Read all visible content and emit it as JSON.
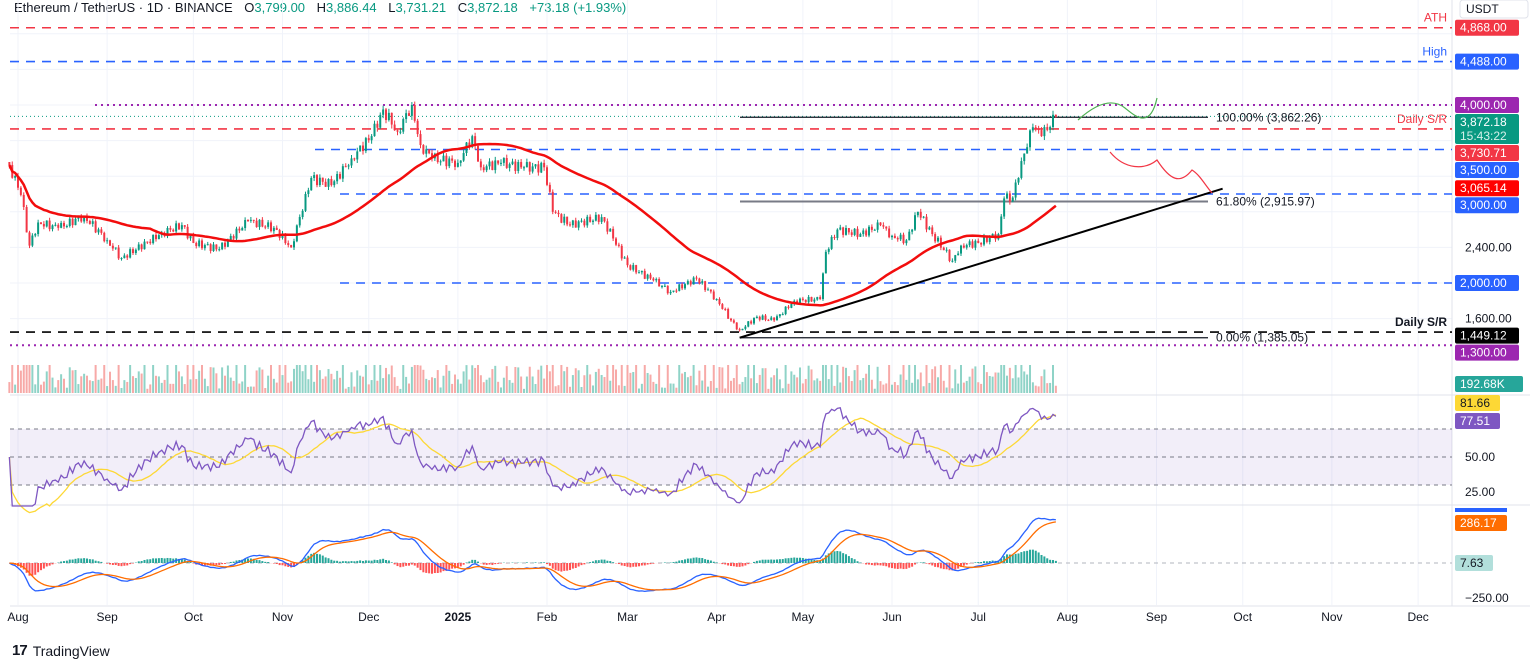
{
  "header": {
    "symbol": "Ethereum / TetherUS · 1D · BINANCE",
    "open_label": "O",
    "open": "3,799.00",
    "high_label": "H",
    "high": "3,886.44",
    "low_label": "L",
    "low": "3,731.21",
    "close_label": "C",
    "close": "3,872.18",
    "change": "+73.18 (+1.93%)"
  },
  "currency": "USDT",
  "footer": {
    "brand": "TradingView"
  },
  "colors": {
    "up": "#089981",
    "down": "#f23645",
    "ma": "#f20d0d",
    "rsi": "#7e57c2",
    "rsi_ma": "#fdd835",
    "macd": "#2962ff",
    "signal": "#ff6d00"
  },
  "chart_data": {
    "type": "candlestick",
    "title": "Ethereum / TetherUS · 1D · BINANCE",
    "x_ticks": [
      "Aug",
      "Sep",
      "Oct",
      "Nov",
      "Dec",
      "2025",
      "Feb",
      "Mar",
      "Apr",
      "May",
      "Jun",
      "Jul",
      "Aug",
      "Sep",
      "Oct",
      "Nov",
      "Dec"
    ],
    "x_tick_dates": [
      "2024-08-01",
      "2024-09-01",
      "2024-10-01",
      "2024-11-01",
      "2024-12-01",
      "2025-01-01",
      "2025-02-01",
      "2025-03-01",
      "2025-04-01",
      "2025-05-01",
      "2025-06-01",
      "2025-07-01",
      "2025-08-01",
      "2025-09-01",
      "2025-10-01",
      "2025-11-01",
      "2025-12-01"
    ],
    "y_ticks": [
      "2,400.00",
      "1,600.00"
    ],
    "ylim": [
      1250,
      5100
    ],
    "scale": "linear",
    "grid": true,
    "approx_close_path": [
      [
        "2024-07-29",
        3326
      ],
      [
        "2024-08-02",
        2990
      ],
      [
        "2024-08-05",
        2420
      ],
      [
        "2024-08-08",
        2680
      ],
      [
        "2024-08-15",
        2620
      ],
      [
        "2024-08-24",
        2750
      ],
      [
        "2024-09-01",
        2480
      ],
      [
        "2024-09-06",
        2280
      ],
      [
        "2024-09-20",
        2560
      ],
      [
        "2024-09-27",
        2650
      ],
      [
        "2024-10-01",
        2450
      ],
      [
        "2024-10-10",
        2380
      ],
      [
        "2024-10-20",
        2700
      ],
      [
        "2024-10-29",
        2620
      ],
      [
        "2024-11-04",
        2400
      ],
      [
        "2024-11-11",
        3180
      ],
      [
        "2024-11-18",
        3100
      ],
      [
        "2024-11-25",
        3400
      ],
      [
        "2024-12-02",
        3650
      ],
      [
        "2024-12-06",
        3950
      ],
      [
        "2024-12-11",
        3700
      ],
      [
        "2024-12-16",
        4000
      ],
      [
        "2024-12-19",
        3550
      ],
      [
        "2024-12-23",
        3400
      ],
      [
        "2025-01-01",
        3350
      ],
      [
        "2025-01-06",
        3650
      ],
      [
        "2025-01-09",
        3300
      ],
      [
        "2025-01-16",
        3350
      ],
      [
        "2025-01-24",
        3300
      ],
      [
        "2025-01-31",
        3300
      ],
      [
        "2025-02-03",
        2800
      ],
      [
        "2025-02-09",
        2650
      ],
      [
        "2025-02-20",
        2740
      ],
      [
        "2025-02-24",
        2500
      ],
      [
        "2025-03-01",
        2200
      ],
      [
        "2025-03-10",
        2030
      ],
      [
        "2025-03-16",
        1900
      ],
      [
        "2025-03-25",
        2050
      ],
      [
        "2025-04-01",
        1820
      ],
      [
        "2025-04-06",
        1580
      ],
      [
        "2025-04-09",
        1470
      ],
      [
        "2025-04-15",
        1620
      ],
      [
        "2025-04-21",
        1580
      ],
      [
        "2025-04-28",
        1800
      ],
      [
        "2025-05-07",
        1820
      ],
      [
        "2025-05-09",
        2350
      ],
      [
        "2025-05-13",
        2600
      ],
      [
        "2025-05-21",
        2550
      ],
      [
        "2025-05-28",
        2650
      ],
      [
        "2025-06-01",
        2530
      ],
      [
        "2025-06-06",
        2480
      ],
      [
        "2025-06-10",
        2800
      ],
      [
        "2025-06-15",
        2550
      ],
      [
        "2025-06-22",
        2250
      ],
      [
        "2025-06-25",
        2420
      ],
      [
        "2025-07-01",
        2450
      ],
      [
        "2025-07-08",
        2550
      ],
      [
        "2025-07-10",
        2950
      ],
      [
        "2025-07-13",
        2960
      ],
      [
        "2025-07-16",
        3370
      ],
      [
        "2025-07-20",
        3750
      ],
      [
        "2025-07-23",
        3650
      ],
      [
        "2025-07-28",
        3872.18
      ]
    ],
    "moving_average": {
      "period": 50,
      "last": 3065.14
    },
    "levels": [
      {
        "name": "ATH",
        "label": "ATH",
        "price": 4868.0,
        "price_label": "4,868.00",
        "style": "dashed",
        "color": "#f23645"
      },
      {
        "name": "high",
        "label": "High",
        "price": 4488.0,
        "price_label": "4,488.00",
        "style": "dashed",
        "color": "#2962ff"
      },
      {
        "name": "level-4000",
        "label": "",
        "price": 4000.0,
        "price_label": "4,000.00",
        "style": "dotted",
        "color": "#9c27b0"
      },
      {
        "name": "daily-sr-upper",
        "label": "Daily S/R",
        "price": 3730.71,
        "price_label": "3,730.71",
        "style": "dashed",
        "color": "#f23645"
      },
      {
        "name": "level-3500",
        "label": "",
        "price": 3500.0,
        "price_label": "3,500.00",
        "style": "dashed",
        "color": "#2962ff"
      },
      {
        "name": "level-3000",
        "label": "",
        "price": 3000.0,
        "price_label": "3,000.00",
        "style": "dashed",
        "color": "#2962ff"
      },
      {
        "name": "level-2000",
        "label": "",
        "price": 2000.0,
        "price_label": "2,000.00",
        "style": "dashed",
        "color": "#2962ff"
      },
      {
        "name": "daily-sr-lower",
        "label": "Daily S/R",
        "price": 1449.12,
        "price_label": "1,449.12",
        "style": "dashed",
        "color": "#000000"
      },
      {
        "name": "level-1300",
        "label": "",
        "price": 1300.0,
        "price_label": "1,300.00",
        "style": "dotted",
        "color": "#9c27b0"
      }
    ],
    "last_price": {
      "price": 3872.18,
      "label": "3,872.18",
      "countdown": "15:43:22"
    },
    "fibonacci": [
      {
        "label": "100.00% (3,862.26)",
        "price": 3862.26,
        "color": "#131722"
      },
      {
        "label": "61.80% (2,915.97)",
        "price": 2915.97,
        "color": "#787b86"
      },
      {
        "label": "0.00% (1,385.05)",
        "price": 1385.05,
        "color": "#131722"
      }
    ],
    "trendline": {
      "from": [
        "2025-04-09",
        1385
      ],
      "to": [
        "2025-09-24",
        3060
      ]
    },
    "volume": {
      "last_label": "192.68K"
    },
    "rsi": {
      "value_label": "77.51",
      "ma_label": "81.66",
      "bands": [
        30,
        50,
        70
      ],
      "y_ticks": [
        "50.00",
        "25.00"
      ],
      "ylim": [
        15,
        95
      ]
    },
    "macd": {
      "macd_label": "286.17",
      "hist_label": "7.63",
      "y_ticks": [
        "-250.00"
      ]
    }
  }
}
